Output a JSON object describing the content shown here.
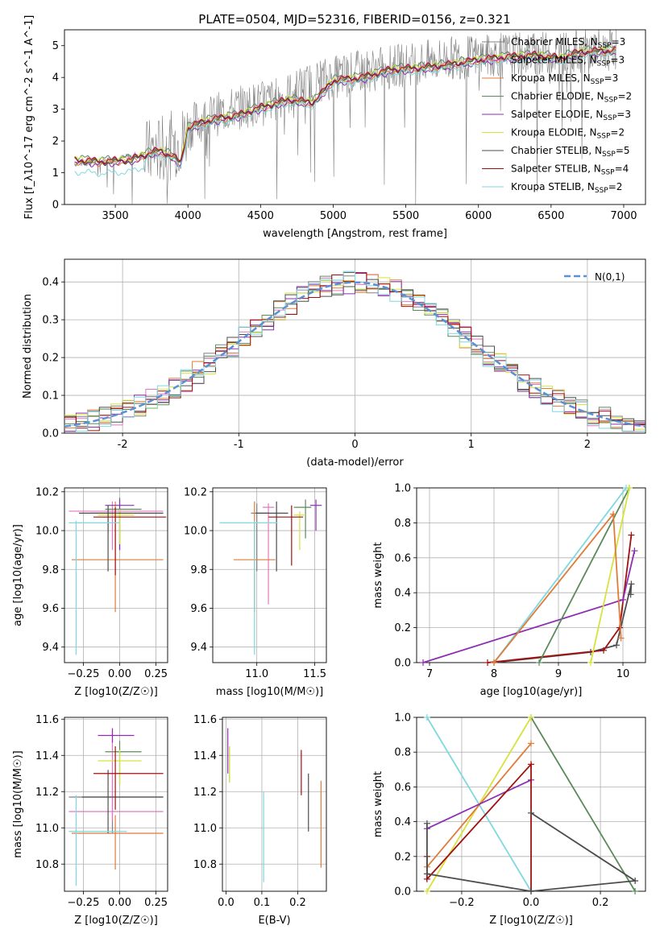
{
  "title": "PLATE=0504, MJD=52316, FIBERID=0156, z=0.321",
  "colors": {
    "chab_miles": "#808080",
    "salp_miles": "#e377c2",
    "krou_miles": "#e07b39",
    "chab_elodie": "#5b8a5b",
    "salp_elodie": "#8e2fb1",
    "krou_elodie": "#d5e33c",
    "chab_stelib": "#4d4d4d",
    "salp_stelib": "#a01010",
    "krou_stelib": "#7fd8e0",
    "gauss": "#5b8fd6",
    "grid": "#b0b0b0"
  },
  "chart_data": [
    {
      "id": "spectrum",
      "type": "line",
      "xlabel": "wavelength [Angstrom, rest frame]",
      "ylabel": "Flux [f_λ10^-17 erg cm^-2 s^-1 A^-1]",
      "xlim": [
        3150,
        7150
      ],
      "ylim": [
        0,
        5.5
      ],
      "xticks": [
        3500,
        4000,
        4500,
        5000,
        5500,
        6000,
        6500,
        7000
      ],
      "yticks": [
        0,
        1,
        2,
        3,
        4,
        5
      ],
      "grid": false,
      "legend_position": "top-right",
      "legend": [
        {
          "key": "chab_miles",
          "label": "Chabrier MILES, N",
          "sub": "SSP",
          "tail": "=3"
        },
        {
          "key": "salp_miles",
          "label": "Salpeter MILES, N",
          "sub": "SSP",
          "tail": "=3"
        },
        {
          "key": "krou_miles",
          "label": "Kroupa MILES, N",
          "sub": "SSP",
          "tail": "=3"
        },
        {
          "key": "chab_elodie",
          "label": "Chabrier ELODIE, N",
          "sub": "SSP",
          "tail": "=2"
        },
        {
          "key": "salp_elodie",
          "label": "Salpeter ELODIE, N",
          "sub": "SSP",
          "tail": "=3"
        },
        {
          "key": "krou_elodie",
          "label": "Kroupa ELODIE, N",
          "sub": "SSP",
          "tail": "=2"
        },
        {
          "key": "chab_stelib",
          "label": "Chabrier STELIB, N",
          "sub": "SSP",
          "tail": "=5"
        },
        {
          "key": "salp_stelib",
          "label": "Salpeter STELIB, N",
          "sub": "SSP",
          "tail": "=4"
        },
        {
          "key": "krou_stelib",
          "label": "Kroupa STELIB, N",
          "sub": "SSP",
          "tail": "=2"
        }
      ],
      "data_spectrum": {
        "x": [
          3220,
          3400,
          3600,
          3800,
          3950,
          4050,
          4300,
          4600,
          4900,
          5200,
          5500,
          5800,
          6100,
          6400,
          6700,
          6950
        ],
        "y": [
          1.3,
          1.35,
          1.5,
          1.7,
          2.0,
          2.6,
          3.0,
          3.3,
          3.9,
          4.2,
          4.4,
          4.6,
          4.7,
          4.75,
          4.8,
          4.9
        ]
      },
      "model_spectrum": {
        "x": [
          3220,
          3400,
          3600,
          3800,
          3900,
          3950,
          4000,
          4100,
          4200,
          4340,
          4500,
          4700,
          4861,
          5000,
          5200,
          5400,
          5600,
          5800,
          6000,
          6200,
          6400,
          6563,
          6700,
          6950
        ],
        "y": [
          1.4,
          1.35,
          1.4,
          1.7,
          1.5,
          1.3,
          2.4,
          2.6,
          2.7,
          2.8,
          3.05,
          3.3,
          3.2,
          3.9,
          4.0,
          4.25,
          4.3,
          4.4,
          4.55,
          4.65,
          4.7,
          4.6,
          4.8,
          4.85
        ]
      }
    },
    {
      "id": "residuals",
      "type": "line",
      "xlabel": "(data-model)/error",
      "ylabel": "Normed distribution",
      "xlim": [
        -2.5,
        2.5
      ],
      "ylim": [
        0,
        0.46
      ],
      "xticks": [
        -2,
        -1,
        0,
        1,
        2
      ],
      "yticks": [
        0.0,
        0.1,
        0.2,
        0.3,
        0.4
      ],
      "ytick_labels": [
        "0.0",
        "0.1",
        "0.2",
        "0.3",
        "0.4"
      ],
      "grid": true,
      "legend_position": "top-right",
      "gauss_label": "N(0,1)",
      "gauss_mu": 0,
      "gauss_sigma": 1
    },
    {
      "id": "z_age",
      "type": "scatter",
      "xlabel": "Z [log10(Z/Z☉)]",
      "ylabel": "age [log10(age/yr)]",
      "xlim": [
        -0.38,
        0.33
      ],
      "ylim": [
        9.32,
        10.22
      ],
      "xticks": [
        -0.25,
        0.0,
        0.25
      ],
      "xtick_labels": [
        "−0.25",
        "0.00",
        "0.25"
      ],
      "yticks": [
        9.4,
        9.6,
        9.8,
        10.0,
        10.2
      ],
      "ytick_labels": [
        "9.4",
        "9.6",
        "9.8",
        "10.0",
        "10.2"
      ],
      "grid": true,
      "points": [
        {
          "c": "chab_miles",
          "x": -0.08,
          "y": 10.09,
          "xerr": [
            0.12,
            0.05
          ],
          "yerr": [
            0.1,
            0.04
          ]
        },
        {
          "c": "salp_miles",
          "x": -0.05,
          "y": 10.1,
          "xerr": [
            0.3,
            0.35
          ],
          "yerr": [
            0.2,
            0.05
          ]
        },
        {
          "c": "krou_miles",
          "x": -0.03,
          "y": 9.85,
          "xerr": [
            0.3,
            0.33
          ],
          "yerr": [
            0.27,
            0.3
          ]
        },
        {
          "c": "chab_elodie",
          "x": 0.0,
          "y": 10.11,
          "xerr": [
            0.1,
            0.15
          ],
          "yerr": [
            0.21,
            0.06
          ]
        },
        {
          "c": "salp_elodie",
          "x": 0.0,
          "y": 10.13,
          "xerr": [
            0.1,
            0.1
          ],
          "yerr": [
            0.23,
            0.03
          ]
        },
        {
          "c": "krou_elodie",
          "x": 0.0,
          "y": 10.08,
          "xerr": [
            0.15,
            0.1
          ],
          "yerr": [
            0.15,
            0.03
          ]
        },
        {
          "c": "chab_stelib",
          "x": -0.08,
          "y": 10.09,
          "xerr": [
            0.2,
            0.38
          ],
          "yerr": [
            0.3,
            0.04
          ]
        },
        {
          "c": "salp_stelib",
          "x": -0.03,
          "y": 10.07,
          "xerr": [
            0.15,
            0.35
          ],
          "yerr": [
            0.3,
            0.05
          ]
        },
        {
          "c": "krou_stelib",
          "x": -0.3,
          "y": 10.04,
          "xerr": [
            0.05,
            0.3
          ],
          "yerr": [
            0.68,
            0.01
          ]
        }
      ]
    },
    {
      "id": "mass_age",
      "type": "scatter",
      "xlabel": "mass [log10(M/M☉)]",
      "ylabel": "",
      "xlim": [
        10.62,
        11.6
      ],
      "ylim": [
        9.32,
        10.22
      ],
      "xticks": [
        11.0,
        11.5
      ],
      "xtick_labels": [
        "11.0",
        "11.5"
      ],
      "yticks": [
        9.4,
        9.6,
        9.8,
        10.0,
        10.2
      ],
      "ytick_labels": [
        "9.4",
        "9.6",
        "9.8",
        "10.0",
        "10.2"
      ],
      "grid": true,
      "points": [
        {
          "c": "chab_miles",
          "x": 11.0,
          "y": 10.09,
          "xerr": [
            0.05,
            0.1
          ],
          "yerr": [
            0.3,
            0.05
          ]
        },
        {
          "c": "salp_miles",
          "x": 11.1,
          "y": 10.12,
          "xerr": [
            0.05,
            0.05
          ],
          "yerr": [
            0.5,
            0.02
          ]
        },
        {
          "c": "krou_miles",
          "x": 10.98,
          "y": 9.85,
          "xerr": [
            0.18,
            0.18
          ],
          "yerr": [
            0.27,
            0.3
          ]
        },
        {
          "c": "chab_elodie",
          "x": 11.42,
          "y": 10.12,
          "xerr": [
            0.1,
            0.05
          ],
          "yerr": [
            0.16,
            0.04
          ]
        },
        {
          "c": "salp_elodie",
          "x": 11.51,
          "y": 10.13,
          "xerr": [
            0.05,
            0.05
          ],
          "yerr": [
            0.13,
            0.03
          ]
        },
        {
          "c": "krou_elodie",
          "x": 11.37,
          "y": 10.08,
          "xerr": [
            0.05,
            0.05
          ],
          "yerr": [
            0.18,
            0.02
          ]
        },
        {
          "c": "chab_stelib",
          "x": 11.17,
          "y": 10.09,
          "xerr": [
            0.18,
            0.1
          ],
          "yerr": [
            0.3,
            0.06
          ]
        },
        {
          "c": "salp_stelib",
          "x": 11.3,
          "y": 10.07,
          "xerr": [
            0.2,
            0.1
          ],
          "yerr": [
            0.25,
            0.06
          ]
        },
        {
          "c": "krou_stelib",
          "x": 10.98,
          "y": 10.04,
          "xerr": [
            0.3,
            0.2
          ],
          "yerr": [
            0.68,
            0.01
          ]
        }
      ]
    },
    {
      "id": "age_weight",
      "type": "line",
      "xlabel": "age [log10(age/yr)]",
      "ylabel": "mass weight",
      "xlim": [
        6.8,
        10.35
      ],
      "ylim": [
        0,
        1
      ],
      "xticks": [
        7,
        8,
        9,
        10
      ],
      "yticks": [
        0.0,
        0.2,
        0.4,
        0.6,
        0.8,
        1.0
      ],
      "ytick_labels": [
        "0.0",
        "0.2",
        "0.4",
        "0.6",
        "0.8",
        "1.0"
      ],
      "grid": true,
      "series": [
        {
          "c": "chab_stelib",
          "x": [
            8.0,
            9.5,
            9.9,
            10.13,
            10.12
          ],
          "y": [
            0.0,
            0.06,
            0.1,
            0.45,
            0.39
          ]
        },
        {
          "c": "salp_stelib",
          "x": [
            7.9,
            9.7,
            9.95,
            10.13
          ],
          "y": [
            0.0,
            0.07,
            0.2,
            0.73
          ]
        },
        {
          "c": "krou_stelib",
          "x": [
            8.0,
            10.05
          ],
          "y": [
            0.0,
            1.0
          ]
        },
        {
          "c": "salp_elodie",
          "x": 6.9,
          "y": 0.0,
          "note": "line",
          "x2": [
            6.9,
            10.0,
            10.18
          ],
          "y2": [
            0.0,
            0.36,
            0.64
          ]
        },
        {
          "c": "chab_elodie",
          "x": [
            8.7,
            10.1
          ],
          "y": [
            0.0,
            1.0
          ]
        },
        {
          "c": "krou_elodie",
          "x": [
            9.5,
            10.1
          ],
          "y": [
            0.0,
            1.0
          ]
        },
        {
          "c": "krou_miles",
          "x": [
            8.0,
            9.85,
            9.97
          ],
          "y": [
            0.0,
            0.85,
            0.14
          ]
        }
      ]
    },
    {
      "id": "z_mass",
      "type": "scatter",
      "xlabel": "Z [log10(Z/Z☉)]",
      "ylabel": "mass [log10(M/M☉)]",
      "xlim": [
        -0.38,
        0.33
      ],
      "ylim": [
        10.65,
        11.61
      ],
      "xticks": [
        -0.25,
        0.0,
        0.25
      ],
      "xtick_labels": [
        "−0.25",
        "0.00",
        "0.25"
      ],
      "yticks": [
        10.8,
        11.0,
        11.2,
        11.4,
        11.6
      ],
      "ytick_labels": [
        "10.8",
        "11.0",
        "11.2",
        "11.4",
        "11.6"
      ],
      "grid": true,
      "points": [
        {
          "c": "chab_miles",
          "x": -0.05,
          "y": 11.17,
          "xerr": [
            0.3,
            0.35
          ],
          "yerr": [
            0.2,
            0.1
          ]
        },
        {
          "c": "salp_miles",
          "x": -0.05,
          "y": 11.09,
          "xerr": [
            0.3,
            0.35
          ],
          "yerr": [
            0.05,
            0.45
          ]
        },
        {
          "c": "krou_miles",
          "x": -0.03,
          "y": 10.97,
          "xerr": [
            0.3,
            0.33
          ],
          "yerr": [
            0.2,
            0.1
          ]
        },
        {
          "c": "chab_elodie",
          "x": 0.0,
          "y": 11.42,
          "xerr": [
            0.1,
            0.15
          ],
          "yerr": [
            0.18,
            0.06
          ]
        },
        {
          "c": "salp_elodie",
          "x": -0.05,
          "y": 11.51,
          "xerr": [
            0.1,
            0.15
          ],
          "yerr": [
            0.04,
            0.04
          ]
        },
        {
          "c": "krou_elodie",
          "x": 0.0,
          "y": 11.37,
          "xerr": [
            0.15,
            0.15
          ],
          "yerr": [
            0.13,
            0.06
          ]
        },
        {
          "c": "chab_stelib",
          "x": -0.08,
          "y": 11.17,
          "xerr": [
            0.18,
            0.38
          ],
          "yerr": [
            0.2,
            0.15
          ]
        },
        {
          "c": "salp_stelib",
          "x": -0.03,
          "y": 11.3,
          "xerr": [
            0.15,
            0.33
          ],
          "yerr": [
            0.2,
            0.15
          ]
        },
        {
          "c": "krou_stelib",
          "x": -0.3,
          "y": 10.98,
          "xerr": [
            0.05,
            0.35
          ],
          "yerr": [
            0.3,
            0.2
          ]
        }
      ]
    },
    {
      "id": "ebv_mass",
      "type": "scatter",
      "xlabel": "E(B-V)",
      "ylabel": "",
      "xlim": [
        -0.01,
        0.28
      ],
      "ylim": [
        10.65,
        11.61
      ],
      "xticks": [
        0.0,
        0.1,
        0.2
      ],
      "xtick_labels": [
        "0.0",
        "0.1",
        "0.2"
      ],
      "yticks": [
        10.8,
        11.0,
        11.2,
        11.4,
        11.6
      ],
      "ytick_labels": [
        "10.8",
        "11.0",
        "11.2",
        "11.4",
        "11.6"
      ],
      "grid": true,
      "points": [
        {
          "c": "salp_elodie",
          "x": 0.005,
          "y": 11.4,
          "yerr": [
            0.1,
            0.15
          ]
        },
        {
          "c": "chab_elodie",
          "x": 0.01,
          "y": 11.35,
          "yerr": [
            0.1,
            0.1
          ]
        },
        {
          "c": "krou_elodie",
          "x": 0.01,
          "y": 11.35,
          "yerr": [
            0.1,
            0.1
          ]
        },
        {
          "c": "krou_stelib",
          "x": 0.105,
          "y": 10.95,
          "yerr": [
            0.25,
            0.25
          ]
        },
        {
          "c": "salp_stelib",
          "x": 0.21,
          "y": 11.3,
          "yerr": [
            0.12,
            0.13
          ]
        },
        {
          "c": "chab_stelib",
          "x": 0.23,
          "y": 11.13,
          "yerr": [
            0.15,
            0.17
          ]
        },
        {
          "c": "krou_miles",
          "x": 0.265,
          "y": 11.0,
          "yerr": [
            0.22,
            0.26
          ]
        }
      ]
    },
    {
      "id": "z_weight",
      "type": "line",
      "xlabel": "Z [log10(Z/Z☉)]",
      "ylabel": "mass weight",
      "xlim": [
        -0.33,
        0.33
      ],
      "ylim": [
        0,
        1
      ],
      "xticks": [
        -0.2,
        0.0,
        0.2
      ],
      "xtick_labels": [
        "−0.2",
        "0.0",
        "0.2"
      ],
      "yticks": [
        0.0,
        0.2,
        0.4,
        0.6,
        0.8,
        1.0
      ],
      "ytick_labels": [
        "0.0",
        "0.2",
        "0.4",
        "0.6",
        "0.8",
        "1.0"
      ],
      "grid": true,
      "series": [
        {
          "c": "krou_stelib",
          "x": [
            -0.3,
            0.0
          ],
          "y": [
            1.0,
            0.0
          ]
        },
        {
          "c": "chab_elodie",
          "x": [
            0.0,
            0.3
          ],
          "y": [
            1.0,
            0.0
          ]
        },
        {
          "c": "krou_elodie",
          "x": [
            -0.3,
            0.0
          ],
          "y": [
            0.0,
            1.0
          ]
        },
        {
          "c": "krou_miles",
          "x": [
            -0.3,
            0.0
          ],
          "y": [
            0.14,
            0.85
          ]
        },
        {
          "c": "salp_elodie",
          "x": [
            -0.3,
            0.0
          ],
          "y": [
            0.36,
            0.64
          ]
        },
        {
          "c": "salp_stelib",
          "x": [
            -0.3,
            -0.3,
            0.0,
            0.0
          ],
          "y": [
            0.2,
            0.07,
            0.73,
            0.0
          ]
        },
        {
          "c": "chab_stelib",
          "x": [
            -0.3,
            -0.3,
            0.0,
            0.3
          ],
          "y": [
            0.39,
            0.1,
            0.0,
            0.06
          ]
        },
        {
          "c": "chab_stelib2",
          "x": [
            0.0,
            0.3
          ],
          "y": [
            0.45,
            0.06
          ]
        }
      ]
    }
  ]
}
